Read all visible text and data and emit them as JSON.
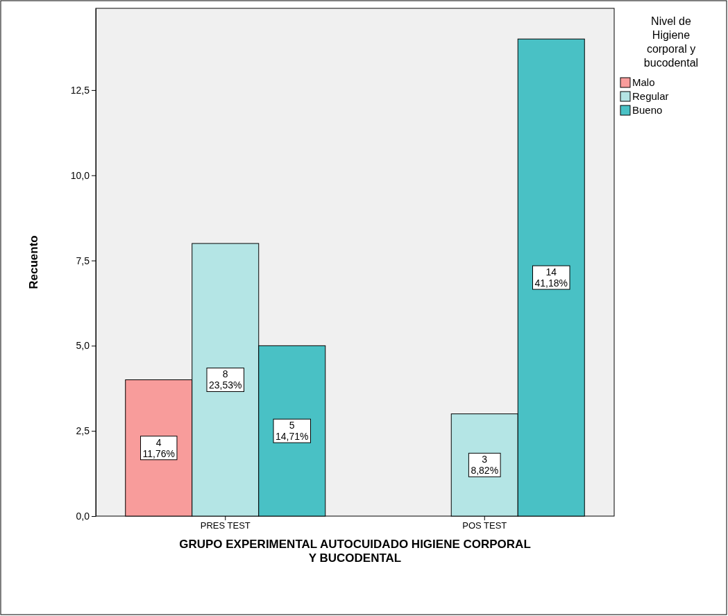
{
  "chart_data": {
    "type": "bar",
    "xlabel": "GRUPO EXPERIMENTAL AUTOCUIDADO HIGIENE CORPORAL Y BUCODENTAL",
    "ylabel": "Recuento",
    "legend_title": "Nivel de Higiene corporal y bucodental",
    "categories": [
      "PRES TEST",
      "POS TEST"
    ],
    "series": [
      {
        "name": "Malo",
        "color": "#f89c9b",
        "values": [
          4,
          null
        ],
        "value_labels": [
          "4\n11,76%",
          null
        ]
      },
      {
        "name": "Regular",
        "color": "#b4e5e5",
        "values": [
          8,
          3
        ],
        "value_labels": [
          "8\n23,53%",
          "3\n8,82%"
        ]
      },
      {
        "name": "Bueno",
        "color": "#49c1c5",
        "values": [
          5,
          14
        ],
        "value_labels": [
          "5\n14,71%",
          "14\n41,18%"
        ]
      }
    ],
    "ylim": [
      0,
      14.9
    ],
    "yticks": [
      {
        "value": 0,
        "label": "0,0"
      },
      {
        "value": 2.5,
        "label": "2,5"
      },
      {
        "value": 5,
        "label": "5,0"
      },
      {
        "value": 7.5,
        "label": "7,5"
      },
      {
        "value": 10,
        "label": "10,0"
      },
      {
        "value": 12.5,
        "label": "12,5"
      }
    ],
    "grid": false,
    "legend": "top right"
  }
}
